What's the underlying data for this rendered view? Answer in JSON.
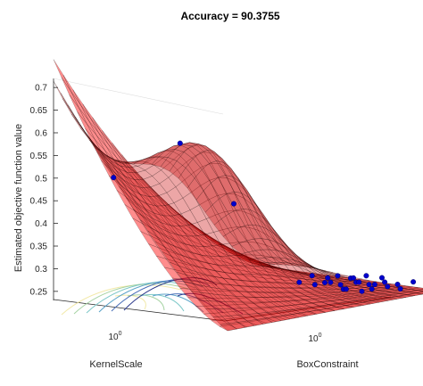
{
  "chart_data": {
    "type": "surface3d",
    "title": "Accuracy = 90.3755",
    "xlabel": "KernelScale",
    "ylabel": "BoxConstraint",
    "zlabel": "Estimated objective function value",
    "z_ticks": [
      "0.25",
      "0.3",
      "0.35",
      "0.4",
      "0.45",
      "0.5",
      "0.55",
      "0.6",
      "0.65",
      "0.7"
    ],
    "zlim": [
      0.23,
      0.72
    ],
    "x_tick_label": "10",
    "x_tick_exp": "0",
    "y_tick_label": "10",
    "y_tick_exp": "0",
    "surfaces": [
      {
        "name": "",
        "color": "#ff0000",
        "opacity": 0.45
      },
      {
        "name": "",
        "color": "#c80000",
        "opacity": 0.35
      }
    ],
    "observed_points": {
      "color": "#0000cc",
      "z_values": [
        0.48,
        0.54,
        0.4,
        0.25,
        0.26,
        0.24,
        0.25,
        0.24,
        0.25,
        0.26,
        0.24,
        0.25,
        0.25,
        0.26,
        0.24,
        0.25,
        0.24,
        0.25,
        0.25,
        0.26,
        0.24,
        0.25,
        0.24,
        0.25,
        0.26,
        0.25,
        0.24,
        0.25
      ]
    },
    "contour_colors": [
      "#f2e9a8",
      "#a6d3a3",
      "#7dc8c8",
      "#5aa3c8",
      "#4a6fb8",
      "#2d3a8c"
    ]
  }
}
